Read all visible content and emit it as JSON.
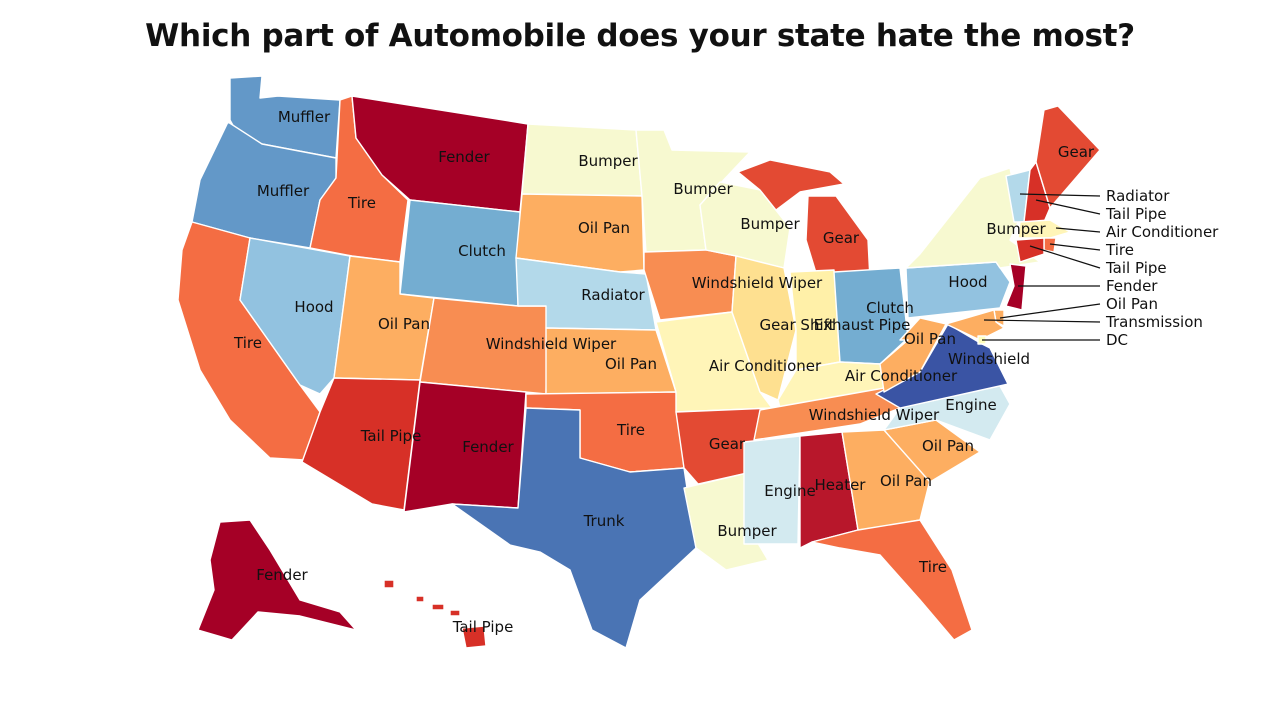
{
  "title": "Which part of Automobile does your state hate the most?",
  "colors": {
    "Fender": "#a50026",
    "Heater": "#b8172b",
    "Tail Pipe": "#d73027",
    "Gear": "#e34a33",
    "Tire": "#f46d43",
    "Windshield Wiper": "#f88d52",
    "Oil Pan": "#fdae61",
    "Transmission": "#fdae61",
    "Gear Shift": "#fee090",
    "Air Conditioner": "#fff5b8",
    "Bumper": "#f7f9d0",
    "Exhaust Pipe": "#fff0a8",
    "DC": "#ffffbf",
    "Engine": "#d3eaf0",
    "Radiator": "#b3d9ea",
    "Hood": "#92c2e0",
    "Clutch": "#74add1",
    "Muffler": "#6398c8",
    "Trunk": "#4a74b4",
    "Windshield": "#3a54a4"
  },
  "states": [
    {
      "id": "WA",
      "part": "Muffler"
    },
    {
      "id": "OR",
      "part": "Muffler"
    },
    {
      "id": "CA",
      "part": "Tire"
    },
    {
      "id": "ID",
      "part": "Tire"
    },
    {
      "id": "NV",
      "part": "Hood"
    },
    {
      "id": "MT",
      "part": "Fender"
    },
    {
      "id": "WY",
      "part": "Clutch"
    },
    {
      "id": "UT",
      "part": "Oil Pan"
    },
    {
      "id": "AZ",
      "part": "Tail Pipe"
    },
    {
      "id": "CO",
      "part": "Windshield Wiper"
    },
    {
      "id": "NM",
      "part": "Fender"
    },
    {
      "id": "ND",
      "part": "Bumper"
    },
    {
      "id": "SD",
      "part": "Oil Pan"
    },
    {
      "id": "NE",
      "part": "Radiator"
    },
    {
      "id": "KS",
      "part": "Oil Pan"
    },
    {
      "id": "OK",
      "part": "Tire"
    },
    {
      "id": "TX",
      "part": "Trunk"
    },
    {
      "id": "MN",
      "part": "Bumper"
    },
    {
      "id": "IA",
      "part": "Windshield Wiper"
    },
    {
      "id": "MO",
      "part": "Air Conditioner"
    },
    {
      "id": "AR",
      "part": "Gear"
    },
    {
      "id": "LA",
      "part": "Bumper"
    },
    {
      "id": "WI",
      "part": "Bumper"
    },
    {
      "id": "IL",
      "part": "Gear Shift"
    },
    {
      "id": "MI",
      "part": "Gear"
    },
    {
      "id": "IN",
      "part": "Exhaust Pipe"
    },
    {
      "id": "OH",
      "part": "Clutch"
    },
    {
      "id": "KY",
      "part": "Air Conditioner"
    },
    {
      "id": "TN",
      "part": "Windshield Wiper"
    },
    {
      "id": "MS",
      "part": "Engine"
    },
    {
      "id": "AL",
      "part": "Heater"
    },
    {
      "id": "GA",
      "part": "Oil Pan"
    },
    {
      "id": "FL",
      "part": "Tire"
    },
    {
      "id": "SC",
      "part": "Oil Pan"
    },
    {
      "id": "NC",
      "part": "Engine"
    },
    {
      "id": "VA",
      "part": "Windshield"
    },
    {
      "id": "WV",
      "part": "Oil Pan"
    },
    {
      "id": "PA",
      "part": "Hood"
    },
    {
      "id": "NY",
      "part": "Bumper"
    },
    {
      "id": "VT",
      "part": "Radiator"
    },
    {
      "id": "NH",
      "part": "Tail Pipe"
    },
    {
      "id": "ME",
      "part": "Gear"
    },
    {
      "id": "MA",
      "part": "Air Conditioner"
    },
    {
      "id": "RI",
      "part": "Tire"
    },
    {
      "id": "CT",
      "part": "Tail Pipe"
    },
    {
      "id": "NJ",
      "part": "Fender"
    },
    {
      "id": "DE",
      "part": "Oil Pan"
    },
    {
      "id": "MD",
      "part": "Transmission"
    },
    {
      "id": "DC",
      "part": "DC"
    },
    {
      "id": "AK",
      "part": "Fender"
    },
    {
      "id": "HI",
      "part": "Tail Pipe"
    }
  ],
  "labels": {
    "WA": "Muffler",
    "OR": "Muffler",
    "CA": "Tire",
    "ID": "Tire",
    "NV": "Hood",
    "MT": "Fender",
    "WY": "Clutch",
    "UT": "Oil Pan",
    "AZ": "Tail Pipe",
    "CO": "Windshield Wiper",
    "NM": "Fender",
    "ND": "Bumper",
    "SD": "Oil Pan",
    "NE": "Radiator",
    "KS": "Oil Pan",
    "OK": "Tire",
    "TX": "Trunk",
    "MN": "Bumper",
    "IA": "Windshield Wiper",
    "MO": "Air Conditioner",
    "AR": "Gear",
    "LA": "Bumper",
    "WI": "Bumper",
    "IL": "Gear Shift",
    "MI": "Gear",
    "IN": "Exhaust Pipe",
    "OH": "Clutch",
    "KY": "Air Conditioner",
    "TN": "Windshield Wiper",
    "MS": "Engine",
    "AL": "Heater",
    "GA": "Oil Pan",
    "FL": "Tire",
    "SC": "Oil Pan",
    "NC": "Engine",
    "VA": "Windshield",
    "WV": "Oil Pan",
    "PA": "Hood",
    "NY": "Bumper",
    "ME": "Gear",
    "AK": "Fender",
    "HI": "Tail Pipe"
  },
  "callouts": [
    {
      "state": "VT",
      "text": "Radiator"
    },
    {
      "state": "NH",
      "text": "Tail Pipe"
    },
    {
      "state": "MA",
      "text": "Air Conditioner"
    },
    {
      "state": "RI",
      "text": "Tire"
    },
    {
      "state": "CT",
      "text": "Tail Pipe"
    },
    {
      "state": "NJ",
      "text": "Fender"
    },
    {
      "state": "DE",
      "text": "Oil Pan"
    },
    {
      "state": "MD",
      "text": "Transmission"
    },
    {
      "state": "DC",
      "text": "DC"
    }
  ]
}
